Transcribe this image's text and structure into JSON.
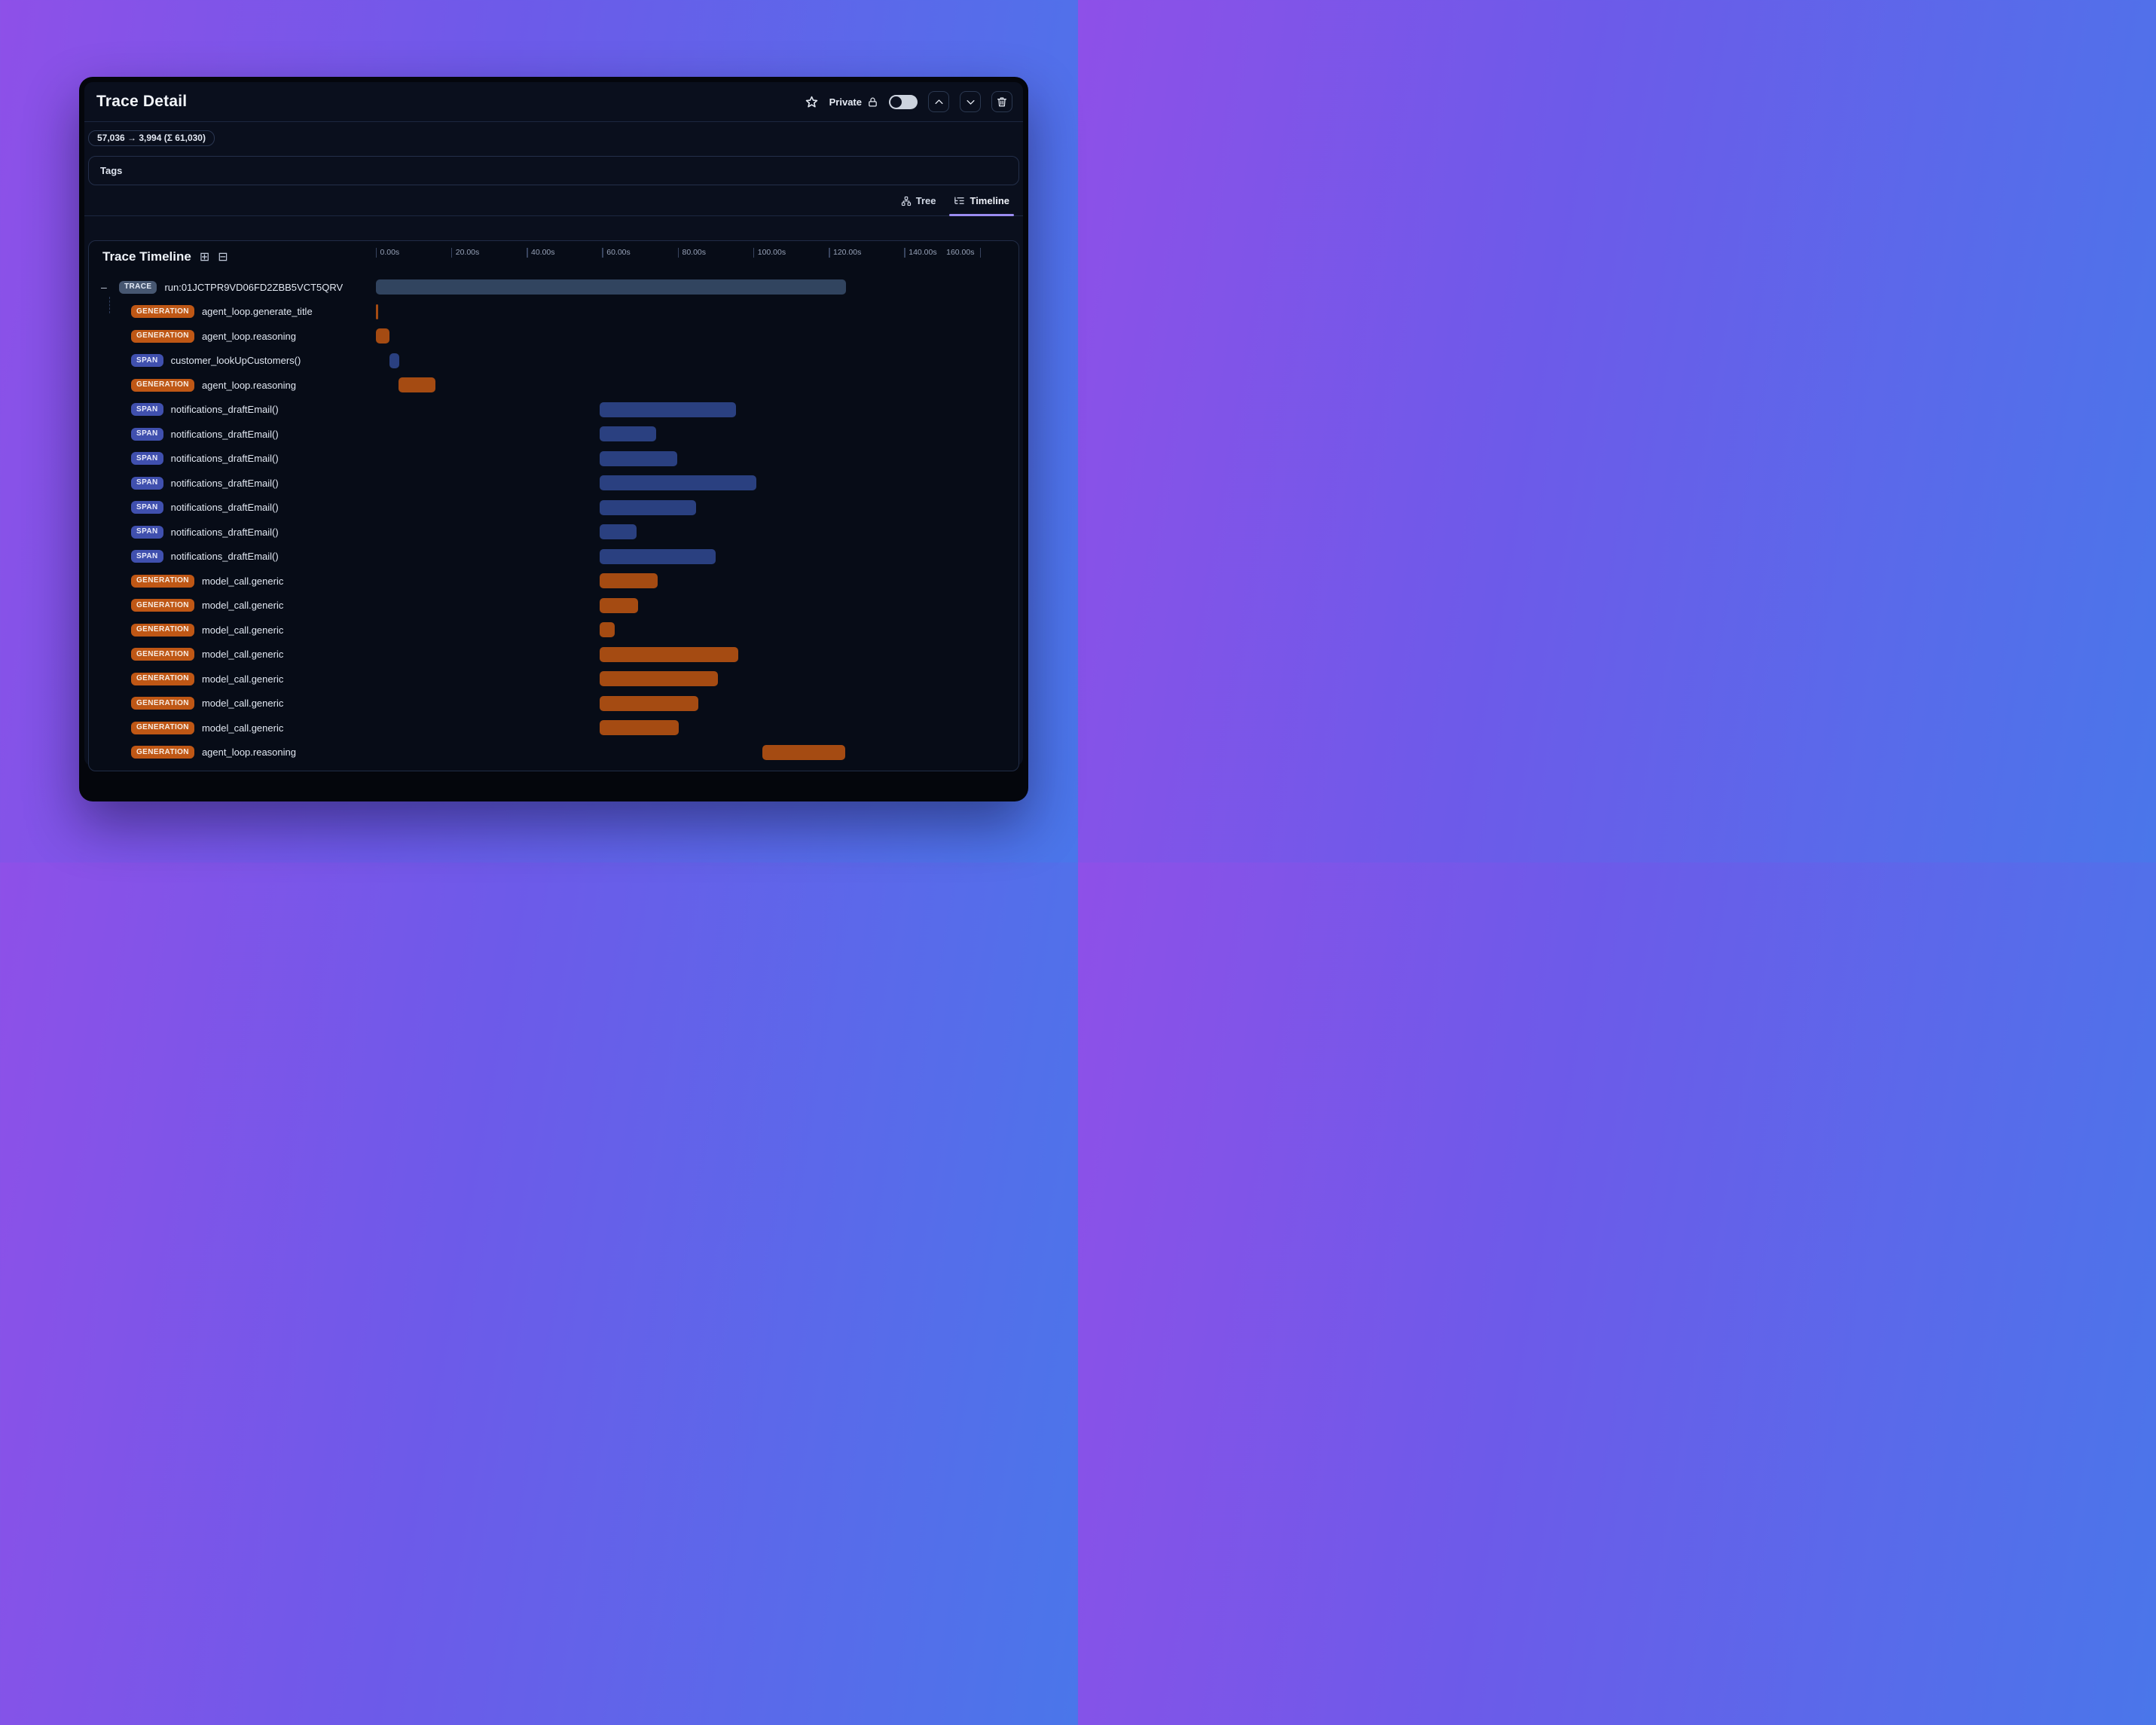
{
  "header": {
    "title": "Trace Detail",
    "privacy": {
      "label": "Private",
      "toggle_state": "off"
    }
  },
  "token_usage": "57,036 → 3,994 (Σ 61,030)",
  "tags_label": "Tags",
  "tabs": [
    {
      "label": "Tree",
      "active": false
    },
    {
      "label": "Timeline",
      "active": true
    }
  ],
  "timeline": {
    "title": "Trace Timeline",
    "axis": {
      "unit": "seconds",
      "tick_seconds": [
        0,
        20,
        40,
        60,
        80,
        100,
        120,
        140,
        160
      ],
      "tick_labels": [
        "0.00s",
        "20.00s",
        "40.00s",
        "60.00s",
        "80.00s",
        "100.00s",
        "120.00s",
        "140.00s",
        "160.00s"
      ],
      "range_s": [
        0,
        160
      ]
    },
    "rows": [
      {
        "type": "TRACE",
        "label": "run:01JCTPR9VD06FD2ZBB5VCT5QRV",
        "start_s": 0,
        "end_s": 124.5,
        "root": true
      },
      {
        "type": "GENERATION",
        "label": "agent_loop.generate_title",
        "start_s": 0,
        "end_s": 0.7
      },
      {
        "type": "GENERATION",
        "label": "agent_loop.reasoning",
        "start_s": 0.1,
        "end_s": 3.7
      },
      {
        "type": "SPAN",
        "label": "customer_lookUpCustomers()",
        "start_s": 3.7,
        "end_s": 6.2
      },
      {
        "type": "GENERATION",
        "label": "agent_loop.reasoning",
        "start_s": 6.1,
        "end_s": 15.9
      },
      {
        "type": "SPAN",
        "label": "notifications_draftEmail()",
        "start_s": 59.4,
        "end_s": 95.5
      },
      {
        "type": "SPAN",
        "label": "notifications_draftEmail()",
        "start_s": 59.4,
        "end_s": 74.3
      },
      {
        "type": "SPAN",
        "label": "notifications_draftEmail()",
        "start_s": 59.4,
        "end_s": 80.0
      },
      {
        "type": "SPAN",
        "label": "notifications_draftEmail()",
        "start_s": 59.4,
        "end_s": 100.9
      },
      {
        "type": "SPAN",
        "label": "notifications_draftEmail()",
        "start_s": 59.4,
        "end_s": 84.9
      },
      {
        "type": "SPAN",
        "label": "notifications_draftEmail()",
        "start_s": 59.4,
        "end_s": 69.1
      },
      {
        "type": "SPAN",
        "label": "notifications_draftEmail()",
        "start_s": 59.4,
        "end_s": 90.1
      },
      {
        "type": "GENERATION",
        "label": "model_call.generic",
        "start_s": 59.4,
        "end_s": 74.7
      },
      {
        "type": "GENERATION",
        "label": "model_call.generic",
        "start_s": 59.4,
        "end_s": 69.5
      },
      {
        "type": "GENERATION",
        "label": "model_call.generic",
        "start_s": 59.4,
        "end_s": 63.3
      },
      {
        "type": "GENERATION",
        "label": "model_call.generic",
        "start_s": 59.4,
        "end_s": 96.1
      },
      {
        "type": "GENERATION",
        "label": "model_call.generic",
        "start_s": 59.4,
        "end_s": 90.7
      },
      {
        "type": "GENERATION",
        "label": "model_call.generic",
        "start_s": 59.4,
        "end_s": 85.5
      },
      {
        "type": "GENERATION",
        "label": "model_call.generic",
        "start_s": 59.4,
        "end_s": 80.3
      },
      {
        "type": "GENERATION",
        "label": "agent_loop.reasoning",
        "start_s": 102.5,
        "end_s": 124.4
      }
    ],
    "expand_icon": "⊞",
    "collapse_icon": "⊟",
    "row_toggle_glyph": "–"
  },
  "colors": {
    "background_gradient_left": "#8e50e8",
    "background_gradient_right": "#4a76ea",
    "window": "#04060c",
    "content": "#0a0f1d",
    "active_tab_underline": "#9b8cf1",
    "trace_badge": "#475771",
    "trace_bar": "#31445f",
    "generation_badge": "#bf5715",
    "generation_bar": "#a54b12",
    "span_badge": "#4050ae",
    "span_bar": "#2a4080",
    "toggle_track": "#cdd3de"
  }
}
